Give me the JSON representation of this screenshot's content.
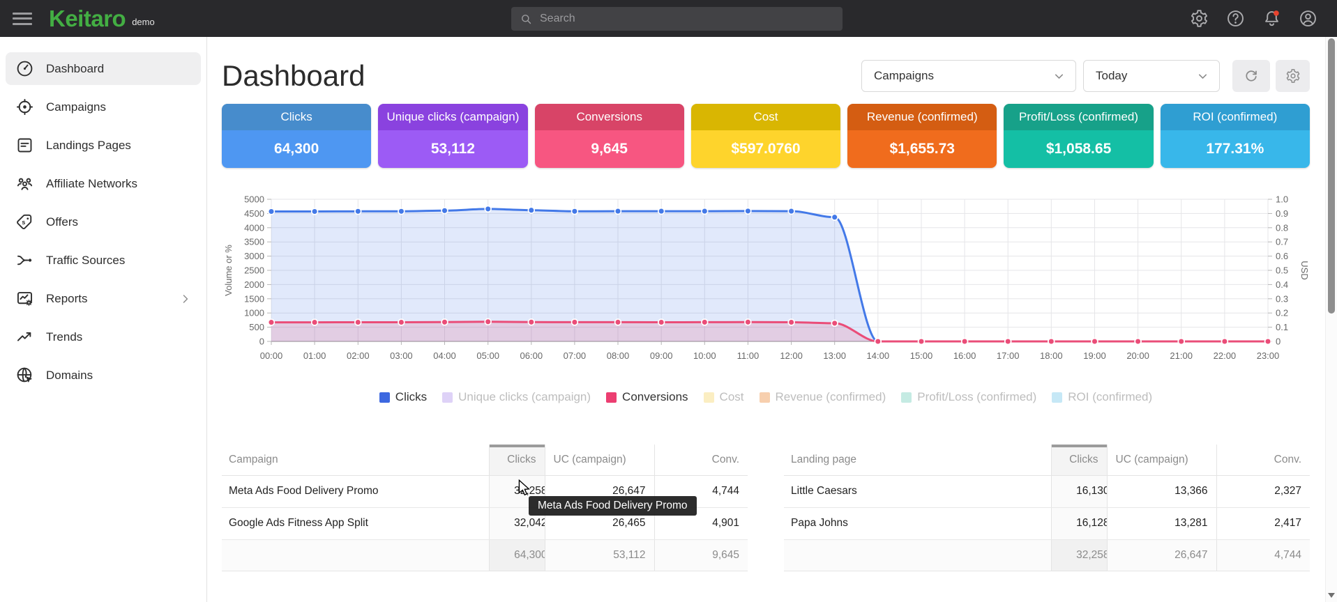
{
  "topbar": {
    "logo": "Keitaro",
    "env_label": "demo",
    "search": {
      "placeholder": "Search"
    },
    "icons": [
      "settings-gear",
      "help",
      "notifications",
      "account"
    ]
  },
  "sidebar": {
    "items": [
      {
        "id": "dashboard",
        "label": "Dashboard",
        "icon": "speedometer-icon",
        "active": true
      },
      {
        "id": "campaigns",
        "label": "Campaigns",
        "icon": "target-icon",
        "active": false
      },
      {
        "id": "landings",
        "label": "Landings Pages",
        "icon": "pages-icon",
        "active": false
      },
      {
        "id": "affiliate",
        "label": "Affiliate Networks",
        "icon": "people-icon",
        "active": false
      },
      {
        "id": "offers",
        "label": "Offers",
        "icon": "tag-icon",
        "active": false
      },
      {
        "id": "traffic",
        "label": "Traffic Sources",
        "icon": "split-icon",
        "active": false
      },
      {
        "id": "reports",
        "label": "Reports",
        "icon": "report-icon",
        "active": false,
        "chevron": true
      },
      {
        "id": "trends",
        "label": "Trends",
        "icon": "trend-icon",
        "active": false
      },
      {
        "id": "domains",
        "label": "Domains",
        "icon": "globe-icon",
        "active": false
      }
    ]
  },
  "header": {
    "title": "Dashboard",
    "scope_select": {
      "value": "Campaigns"
    },
    "range_select": {
      "value": "Today"
    }
  },
  "cards": [
    {
      "label": "Clicks",
      "value": "64,300",
      "header_color": "#478ccc",
      "body_color": "#4e97f2"
    },
    {
      "label": "Unique clicks (campaign)",
      "value": "53,112",
      "header_color": "#8a42df",
      "body_color": "#9c5bf5"
    },
    {
      "label": "Conversions",
      "value": "9,645",
      "header_color": "#d84467",
      "body_color": "#f75681"
    },
    {
      "label": "Cost",
      "value": "$597.0760",
      "header_color": "#d9b602",
      "body_color": "#fed42c"
    },
    {
      "label": "Revenue (confirmed)",
      "value": "$1,655.73",
      "header_color": "#d45d12",
      "body_color": "#f06c1d"
    },
    {
      "label": "Profit/Loss (confirmed)",
      "value": "$1,058.65",
      "header_color": "#17a189",
      "body_color": "#14bfa5"
    },
    {
      "label": "ROI (confirmed)",
      "value": "177.31%",
      "header_color": "#2f9ed2",
      "body_color": "#38b7ea"
    }
  ],
  "chart_data": {
    "type": "line",
    "x": [
      "00:00",
      "01:00",
      "02:00",
      "03:00",
      "04:00",
      "05:00",
      "06:00",
      "07:00",
      "08:00",
      "09:00",
      "10:00",
      "11:00",
      "12:00",
      "13:00",
      "14:00",
      "15:00",
      "16:00",
      "17:00",
      "18:00",
      "19:00",
      "20:00",
      "21:00",
      "22:00",
      "23:00"
    ],
    "ylabel_left": "Volume or %",
    "ylabel_right": "USD",
    "ylim_left": [
      0,
      5000
    ],
    "ytick_step_left": 500,
    "ylim_right": [
      0,
      1.0
    ],
    "ytick_step_right": 0.1,
    "grid": true,
    "legend_position": "bottom",
    "series": [
      {
        "name": "Clicks",
        "axis": "left",
        "color": "#4379e8",
        "fill": "rgba(67,121,232,0.16)",
        "values": [
          4570,
          4570,
          4575,
          4575,
          4600,
          4660,
          4615,
          4575,
          4580,
          4580,
          4580,
          4585,
          4580,
          4370,
          0,
          0,
          0,
          0,
          0,
          0,
          0,
          0,
          0,
          0
        ]
      },
      {
        "name": "Conversions",
        "axis": "left",
        "color": "#ea4d78",
        "fill": "rgba(234,77,120,0.18)",
        "values": [
          672,
          672,
          675,
          675,
          678,
          690,
          680,
          676,
          676,
          675,
          676,
          678,
          675,
          640,
          0,
          0,
          0,
          0,
          0,
          0,
          0,
          0,
          0,
          0
        ]
      }
    ],
    "legend": [
      {
        "label": "Clicks",
        "swatch": "#3d68e0",
        "active": true
      },
      {
        "label": "Unique clicks (campaign)",
        "swatch": "#ded2f7",
        "active": false
      },
      {
        "label": "Conversions",
        "swatch": "#ec3e71",
        "active": true
      },
      {
        "label": "Cost",
        "swatch": "#fbeec2",
        "active": false
      },
      {
        "label": "Revenue (confirmed)",
        "swatch": "#f7cfae",
        "active": false
      },
      {
        "label": "Profit/Loss (confirmed)",
        "swatch": "#c5ebe3",
        "active": false
      },
      {
        "label": "ROI (confirmed)",
        "swatch": "#c6e8f6",
        "active": false
      }
    ]
  },
  "tables": [
    {
      "name_header": "Campaign",
      "columns": [
        "Clicks",
        "UC (campaign)",
        "Conv."
      ],
      "sorted_column": "Clicks",
      "rows": [
        {
          "name": "Meta Ads Food Delivery Promo",
          "values": [
            "32,258",
            "26,647",
            "4,744"
          ]
        },
        {
          "name": "Google Ads Fitness App Split",
          "values": [
            "32,042",
            "26,465",
            "4,901"
          ]
        }
      ],
      "footer": [
        "64,300",
        "53,112",
        "9,645"
      ]
    },
    {
      "name_header": "Landing page",
      "columns": [
        "Clicks",
        "UC (campaign)",
        "Conv."
      ],
      "sorted_column": "Clicks",
      "rows": [
        {
          "name": "Little Caesars",
          "values": [
            "16,130",
            "13,366",
            "2,327"
          ]
        },
        {
          "name": "Papa Johns",
          "values": [
            "16,128",
            "13,281",
            "2,417"
          ]
        }
      ],
      "footer": [
        "32,258",
        "26,647",
        "4,744"
      ]
    }
  ],
  "tooltip": {
    "text": "Meta Ads Food Delivery Promo"
  }
}
